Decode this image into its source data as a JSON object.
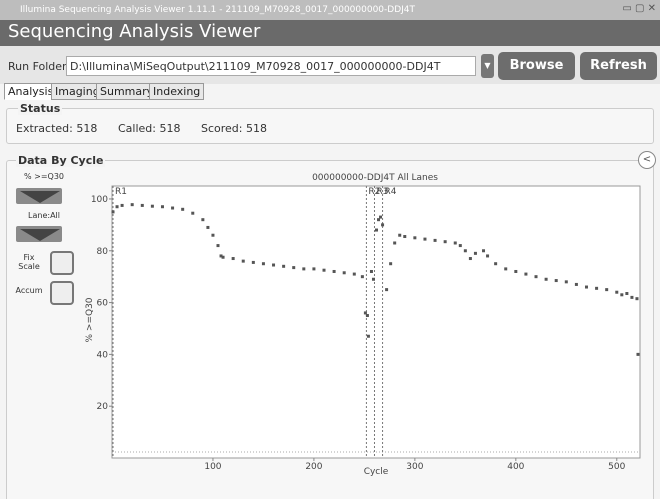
{
  "window": {
    "title": "Illumina Sequencing Analysis Viewer 1.11.1 - 211109_M70928_0017_000000000-DDJ4T"
  },
  "header": {
    "title": "Sequencing Analysis Viewer"
  },
  "run_folder": {
    "label": "Run Folder:",
    "path": "D:\\Illumina\\MiSeqOutput\\211109_M70928_0017_000000000-DDJ4T",
    "buttons": [
      "Browse",
      "Refresh"
    ]
  },
  "tabs": [
    "Analysis",
    "Imaging",
    "Summary",
    "Indexing"
  ],
  "status": {
    "title": "Status",
    "items": [
      "Extracted: 518",
      "Called: 518",
      "Scored: 518"
    ]
  },
  "panel": {
    "title": "Data By Cycle",
    "metric": "% >=Q30",
    "lane": "Lane:All",
    "checkboxes": [
      "Fix Scale",
      "Accum"
    ]
  },
  "chart_data": {
    "type": "scatter",
    "title": "000000000-DDJ4T All Lanes",
    "x_label": "Cycle",
    "y_label": "% >=Q30",
    "x": [
      1,
      5,
      10,
      20,
      30,
      40,
      50,
      60,
      70,
      80,
      90,
      95,
      100,
      105,
      108,
      110,
      120,
      130,
      140,
      150,
      160,
      170,
      180,
      190,
      200,
      210,
      220,
      230,
      240,
      248,
      251,
      253,
      254,
      257,
      259,
      262,
      264,
      266,
      268,
      272,
      276,
      280,
      285,
      290,
      300,
      310,
      320,
      330,
      340,
      345,
      350,
      355,
      360,
      368,
      372,
      380,
      390,
      400,
      410,
      420,
      430,
      440,
      450,
      460,
      470,
      480,
      490,
      500,
      505,
      510,
      515,
      520,
      521
    ],
    "values": [
      95,
      97,
      97.5,
      97.8,
      97.5,
      97.2,
      97,
      96.5,
      96,
      94.5,
      92,
      89,
      86,
      82,
      78,
      77.5,
      77,
      76,
      75.5,
      75,
      74.5,
      74,
      73.5,
      73,
      73,
      72.5,
      72,
      71.5,
      71,
      70,
      56,
      55,
      47,
      72,
      69,
      88,
      92,
      93,
      90,
      65,
      75,
      83,
      86,
      85.5,
      85,
      84.5,
      84,
      83.5,
      83,
      82,
      80,
      77,
      79,
      80,
      78,
      75,
      73,
      72,
      71,
      70,
      69,
      68.5,
      68,
      67,
      66,
      65.5,
      65,
      64,
      63,
      63.5,
      62,
      61.5,
      40
    ],
    "xlim": [
      0,
      523
    ],
    "ylim": [
      0,
      105
    ],
    "xticks": [
      100,
      200,
      300,
      400,
      500
    ],
    "yticks": [
      20,
      40,
      60,
      80,
      100
    ],
    "color": "#555555",
    "reads": {
      "labels": [
        "R1",
        "R2",
        "R3",
        "R4"
      ],
      "starts": [
        1,
        252,
        260,
        268
      ]
    }
  }
}
